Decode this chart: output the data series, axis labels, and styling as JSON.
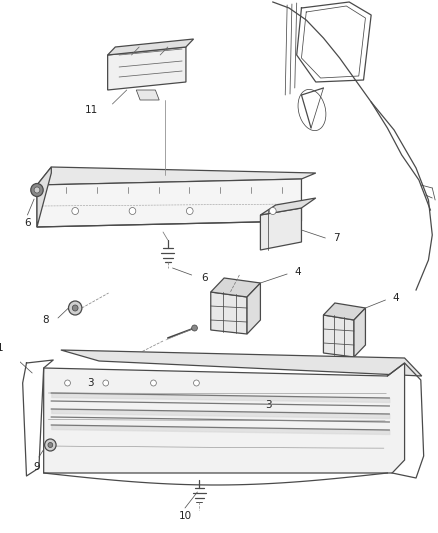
{
  "bg_color": "#ffffff",
  "line_color": "#4a4a4a",
  "label_color": "#222222",
  "gray": "#888888",
  "light_gray": "#cccccc",
  "dark_gray": "#333333"
}
